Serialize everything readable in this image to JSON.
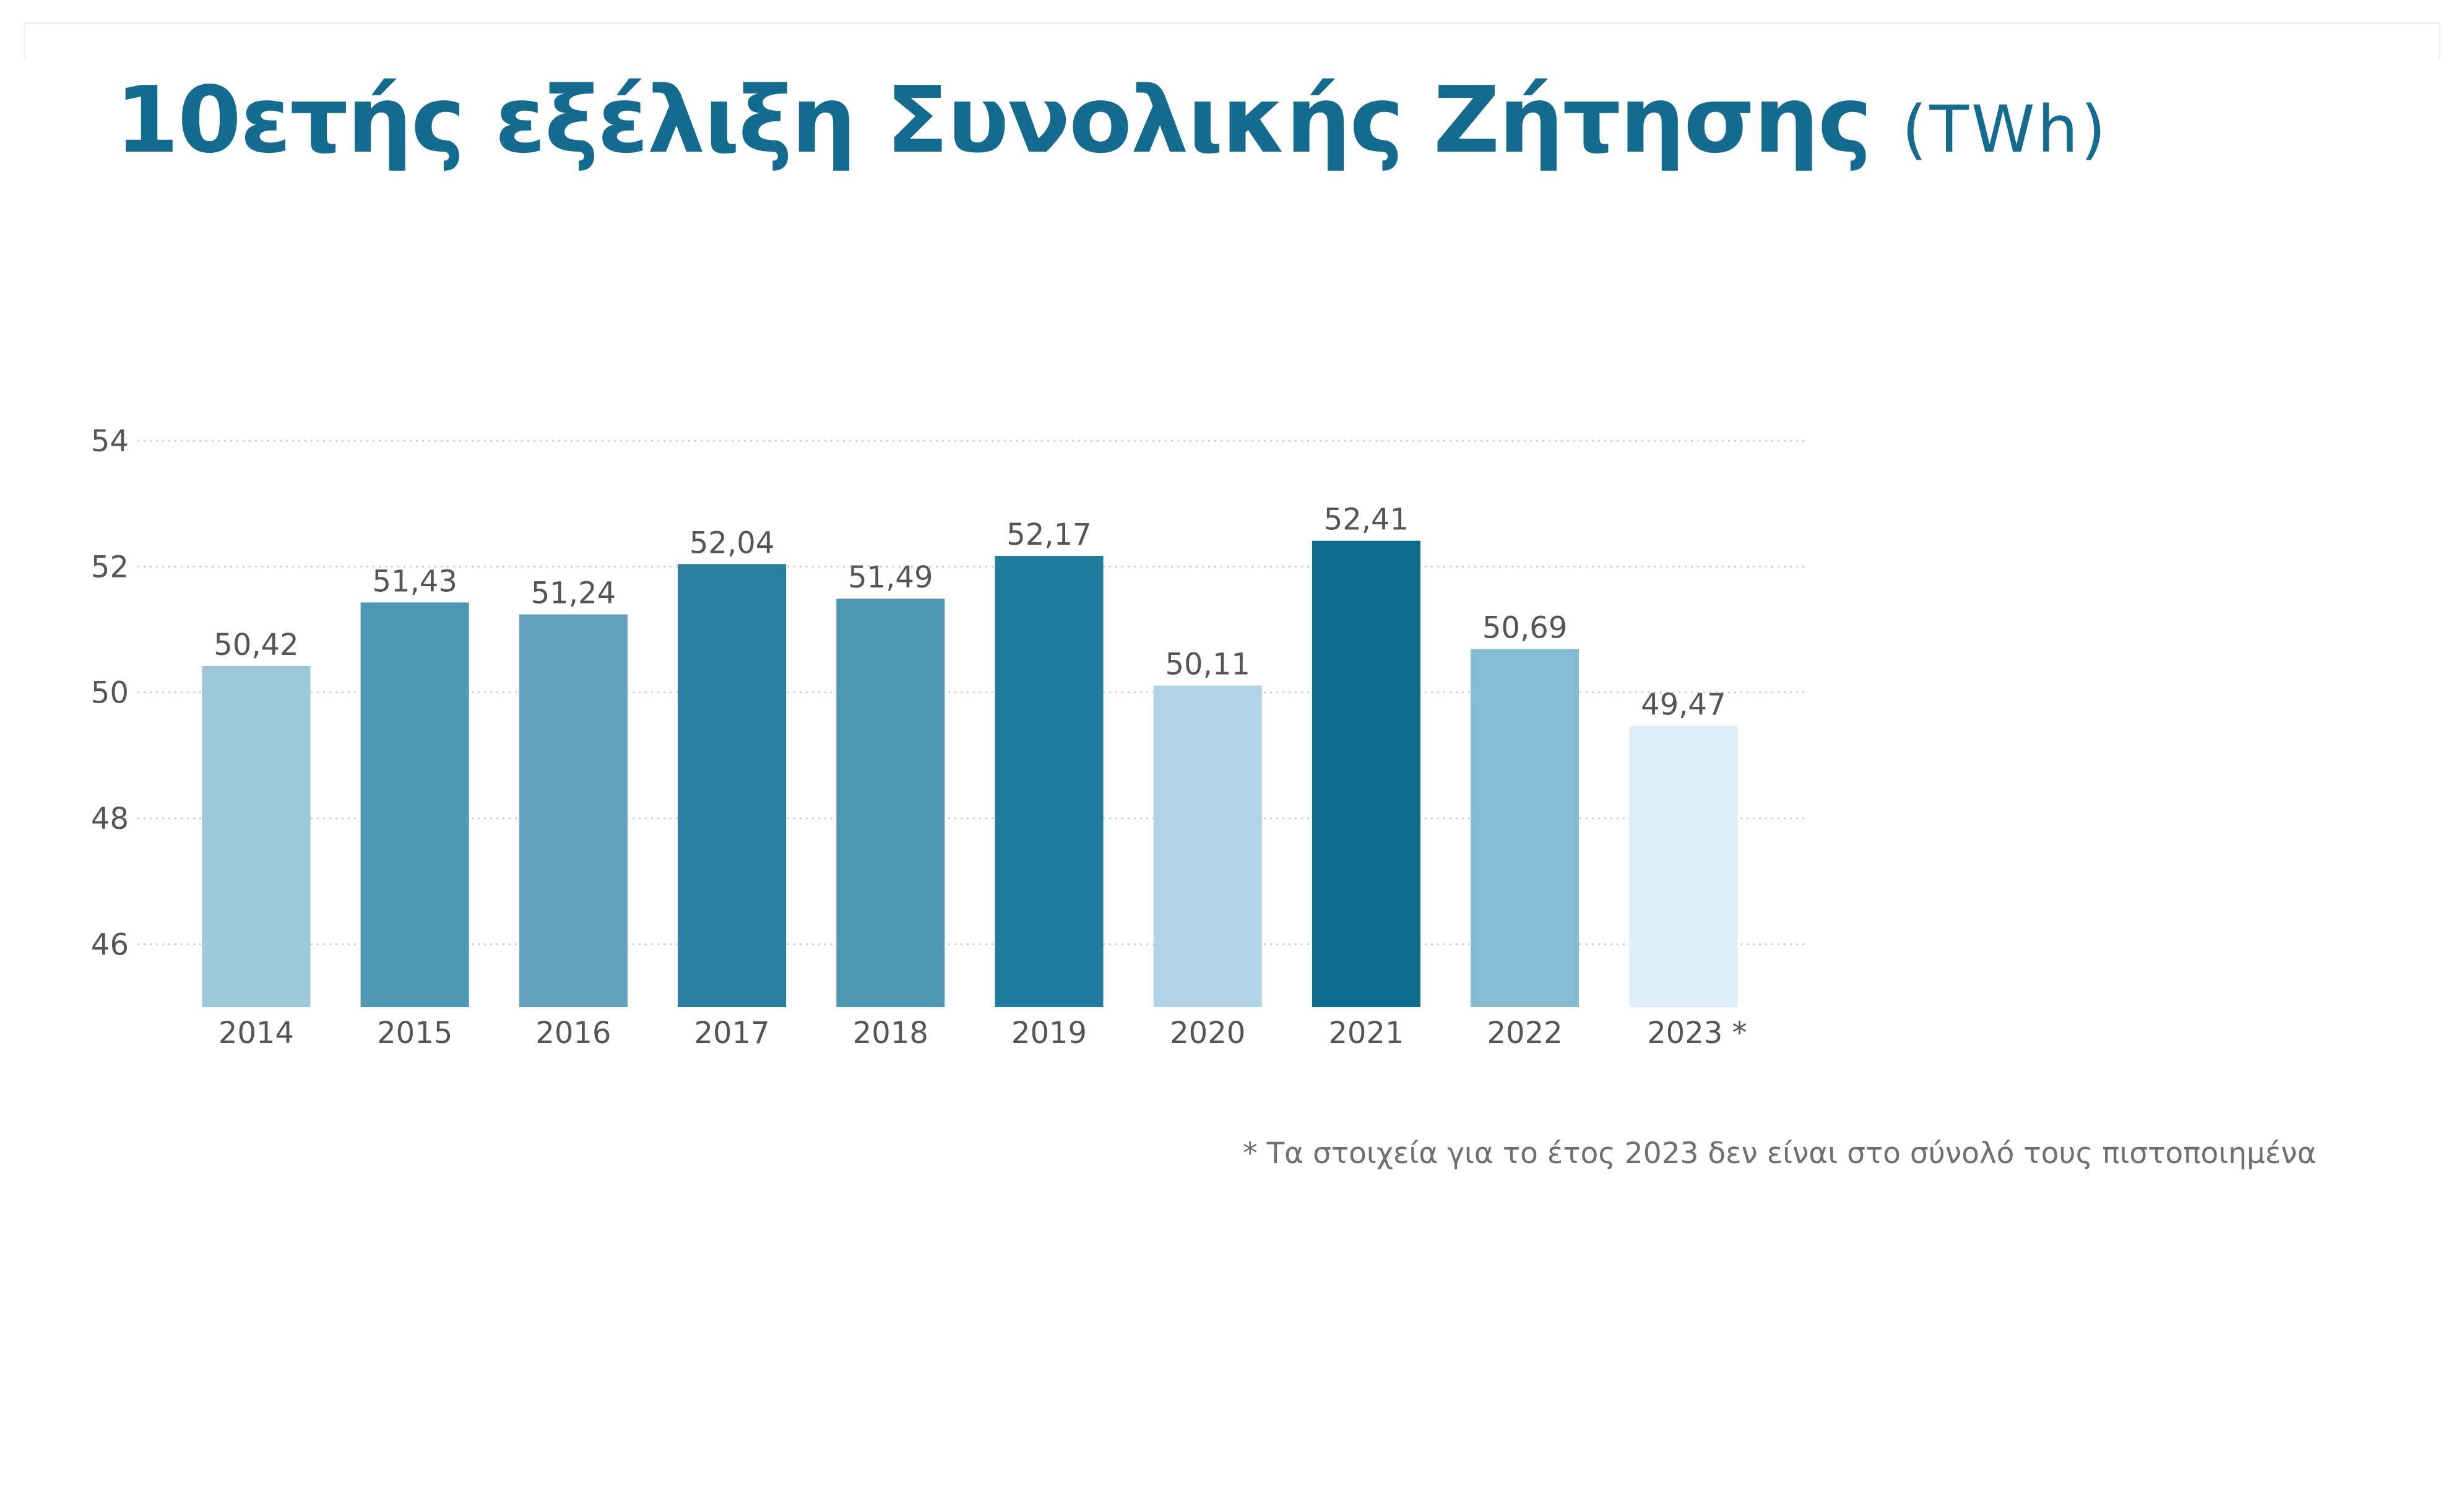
{
  "header": {
    "title": "10ετής εξέλιξη Συνολικής Ζήτησης",
    "unit": "(TWh)"
  },
  "chart_data": {
    "type": "bar",
    "title": "10ετής εξέλιξη Συνολικής Ζήτησης",
    "unit": "(TWh)",
    "xlabel": "",
    "ylabel": "",
    "categories": [
      "2014",
      "2015",
      "2016",
      "2017",
      "2018",
      "2019",
      "2020",
      "2021",
      "2022",
      "2023 *"
    ],
    "values": [
      50.42,
      51.43,
      51.24,
      52.04,
      51.49,
      52.17,
      50.11,
      52.41,
      50.69,
      49.47
    ],
    "value_labels": [
      "50,42",
      "51,43",
      "51,24",
      "52,04",
      "51,49",
      "52,17",
      "50,11",
      "52,41",
      "50,69",
      "49,47"
    ],
    "bar_colors": [
      "#9dc8d8",
      "#4e98b4",
      "#62a2bc",
      "#2a7fa0",
      "#4e98b4",
      "#207b9c",
      "#afd4e3",
      "#0e6c8f",
      "#86bcd0",
      "#ddeff6"
    ],
    "y_ticks": [
      46,
      48,
      50,
      52,
      54
    ],
    "ylim": [
      45,
      54
    ],
    "grid": true,
    "legend": "none"
  },
  "footnote": "* Τα στοιχεία για το έτος 2023 δεν είναι στο σύνολό τους πιστοποιημένα",
  "colors": {
    "title": "#136b8f",
    "axis_text": "#555555",
    "grid": "#cfcfcf"
  }
}
